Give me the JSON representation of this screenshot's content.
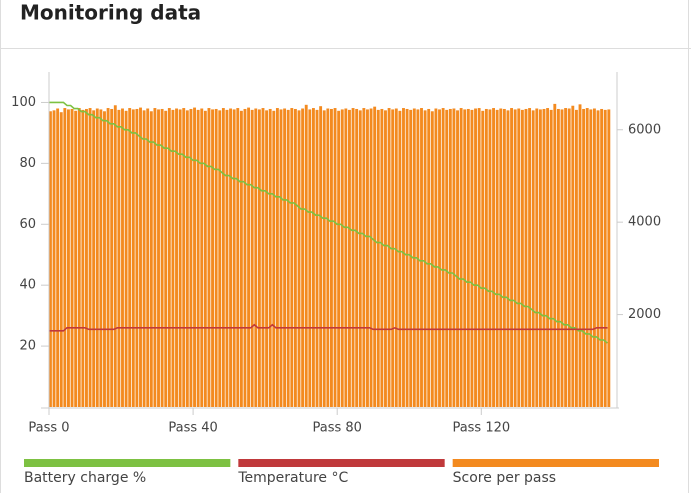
{
  "chart_data": {
    "type": "combo",
    "title": "Monitoring data",
    "x": [
      0,
      1,
      2,
      3,
      4,
      5,
      6,
      7,
      8,
      9,
      10,
      11,
      12,
      13,
      14,
      15,
      16,
      17,
      18,
      19,
      20,
      21,
      22,
      23,
      24,
      25,
      26,
      27,
      28,
      29,
      30,
      31,
      32,
      33,
      34,
      35,
      36,
      37,
      38,
      39,
      40,
      41,
      42,
      43,
      44,
      45,
      46,
      47,
      48,
      49,
      50,
      51,
      52,
      53,
      54,
      55,
      56,
      57,
      58,
      59,
      60,
      61,
      62,
      63,
      64,
      65,
      66,
      67,
      68,
      69,
      70,
      71,
      72,
      73,
      74,
      75,
      76,
      77,
      78,
      79,
      80,
      81,
      82,
      83,
      84,
      85,
      86,
      87,
      88,
      89,
      90,
      91,
      92,
      93,
      94,
      95,
      96,
      97,
      98,
      99,
      100,
      101,
      102,
      103,
      104,
      105,
      106,
      107,
      108,
      109,
      110,
      111,
      112,
      113,
      114,
      115,
      116,
      117,
      118,
      119,
      120,
      121,
      122,
      123,
      124,
      125,
      126,
      127,
      128,
      129,
      130,
      131,
      132,
      133,
      134,
      135,
      136,
      137,
      138,
      139,
      140,
      141,
      142,
      143,
      144,
      145,
      146,
      147,
      148,
      149,
      150,
      151,
      152,
      153,
      154,
      155
    ],
    "xlim": [
      0,
      156
    ],
    "xticks": [
      {
        "value": 0,
        "label": "Pass 0"
      },
      {
        "value": 40,
        "label": "Pass 40"
      },
      {
        "value": 80,
        "label": "Pass 80"
      },
      {
        "value": 120,
        "label": "Pass 120"
      }
    ],
    "ylim": [
      0,
      110
    ],
    "yticks": [
      20,
      40,
      60,
      80,
      100
    ],
    "y2lim": [
      0,
      7250
    ],
    "y2ticks": [
      2000,
      4000,
      6000
    ],
    "legend": "bottom",
    "series": [
      {
        "name": "Battery charge %",
        "type": "line",
        "color": "#7dc142",
        "values": [
          100,
          100,
          100,
          100,
          100,
          99,
          99,
          98,
          98,
          97,
          97,
          96,
          96,
          95,
          95,
          94,
          94,
          93,
          93,
          92,
          92,
          91,
          91,
          90,
          90,
          89,
          88,
          88,
          87,
          87,
          86,
          86,
          85,
          85,
          84,
          84,
          83,
          83,
          82,
          82,
          81,
          81,
          80,
          80,
          79,
          79,
          78,
          78,
          77,
          76,
          76,
          75,
          75,
          74,
          74,
          73,
          73,
          72,
          72,
          71,
          71,
          70,
          70,
          69,
          69,
          68,
          68,
          67,
          67,
          66,
          65,
          65,
          64,
          64,
          63,
          63,
          62,
          62,
          61,
          61,
          60,
          60,
          59,
          59,
          58,
          58,
          57,
          57,
          56,
          56,
          55,
          54,
          54,
          53,
          53,
          52,
          52,
          51,
          51,
          50,
          50,
          49,
          49,
          48,
          48,
          47,
          47,
          46,
          46,
          45,
          45,
          44,
          44,
          43,
          42,
          42,
          41,
          41,
          40,
          40,
          39,
          39,
          38,
          38,
          37,
          37,
          36,
          36,
          35,
          35,
          34,
          34,
          33,
          33,
          32,
          31,
          31,
          30,
          30,
          29,
          29,
          28,
          28,
          27,
          27,
          26,
          26,
          25,
          25,
          24,
          24,
          23,
          23,
          22,
          22,
          21
        ]
      },
      {
        "name": "Temperature °C",
        "type": "line",
        "color": "#c0393b",
        "values": [
          25,
          25,
          25,
          25,
          25,
          26,
          26,
          26,
          26,
          26,
          26,
          25.5,
          25.5,
          25.5,
          25.5,
          25.5,
          25.5,
          25.5,
          25.5,
          26,
          26,
          26,
          26,
          26,
          26,
          26,
          26,
          26,
          26,
          26,
          26,
          26,
          26,
          26,
          26,
          26,
          26,
          26,
          26,
          26,
          26,
          26,
          26,
          26,
          26,
          26,
          26,
          26,
          26,
          26,
          26,
          26,
          26,
          26,
          26,
          26,
          26,
          27,
          26,
          26,
          26,
          26,
          27,
          26,
          26,
          26,
          26,
          26,
          26,
          26,
          26,
          26,
          26,
          26,
          26,
          26,
          26,
          26,
          26,
          26,
          26,
          26,
          26,
          26,
          26,
          26,
          26,
          26,
          26,
          26,
          25.5,
          25.5,
          25.5,
          25.5,
          25.5,
          25.5,
          26,
          25.5,
          25.5,
          25.5,
          25.5,
          25.5,
          25.5,
          25.5,
          25.5,
          25.5,
          25.5,
          25.5,
          25.5,
          25.5,
          25.5,
          25.5,
          25.5,
          25.5,
          25.5,
          25.5,
          25.5,
          25.5,
          25.5,
          25.5,
          25.5,
          25.5,
          25.5,
          25.5,
          25.5,
          25.5,
          25.5,
          25.5,
          25.5,
          25.5,
          25.5,
          25.5,
          25.5,
          25.5,
          25.5,
          25.5,
          25.5,
          25.5,
          25.5,
          25.5,
          25.5,
          25.5,
          25.5,
          25.5,
          25.5,
          25.5,
          25.5,
          25.5,
          25.5,
          25.5,
          25.5,
          25.5,
          26,
          26,
          26,
          26
        ]
      },
      {
        "name": "Score per pass",
        "type": "bar",
        "axis": "y2",
        "color": "#f38a1f",
        "values": [
          6400,
          6420,
          6460,
          6380,
          6470,
          6440,
          6450,
          6410,
          6470,
          6430,
          6450,
          6470,
          6420,
          6460,
          6440,
          6400,
          6470,
          6450,
          6530,
          6430,
          6460,
          6410,
          6470,
          6440,
          6450,
          6480,
          6420,
          6460,
          6400,
          6470,
          6440,
          6450,
          6410,
          6470,
          6430,
          6460,
          6440,
          6470,
          6420,
          6450,
          6480,
          6430,
          6460,
          6410,
          6470,
          6440,
          6450,
          6420,
          6470,
          6430,
          6460,
          6440,
          6470,
          6410,
          6450,
          6480,
          6430,
          6460,
          6440,
          6470,
          6420,
          6450,
          6410,
          6470,
          6440,
          6460,
          6430,
          6470,
          6450,
          6420,
          6460,
          6540,
          6440,
          6470,
          6430,
          6510,
          6420,
          6460,
          6450,
          6470,
          6410,
          6440,
          6460,
          6430,
          6470,
          6450,
          6420,
          6470,
          6440,
          6460,
          6500,
          6430,
          6450,
          6420,
          6470,
          6440,
          6460,
          6410,
          6470,
          6450,
          6430,
          6460,
          6440,
          6470,
          6420,
          6450,
          6400,
          6460,
          6440,
          6470,
          6430,
          6450,
          6460,
          6420,
          6470,
          6440,
          6450,
          6430,
          6460,
          6470,
          6410,
          6450,
          6440,
          6470,
          6430,
          6460,
          6450,
          6420,
          6470,
          6440,
          6460,
          6430,
          6450,
          6470,
          6420,
          6460,
          6440,
          6450,
          6470,
          6430,
          6560,
          6450,
          6440,
          6470,
          6460,
          6520,
          6430,
          6550,
          6450,
          6470,
          6440,
          6460,
          6420,
          6450,
          6430,
          6440
        ]
      }
    ]
  }
}
